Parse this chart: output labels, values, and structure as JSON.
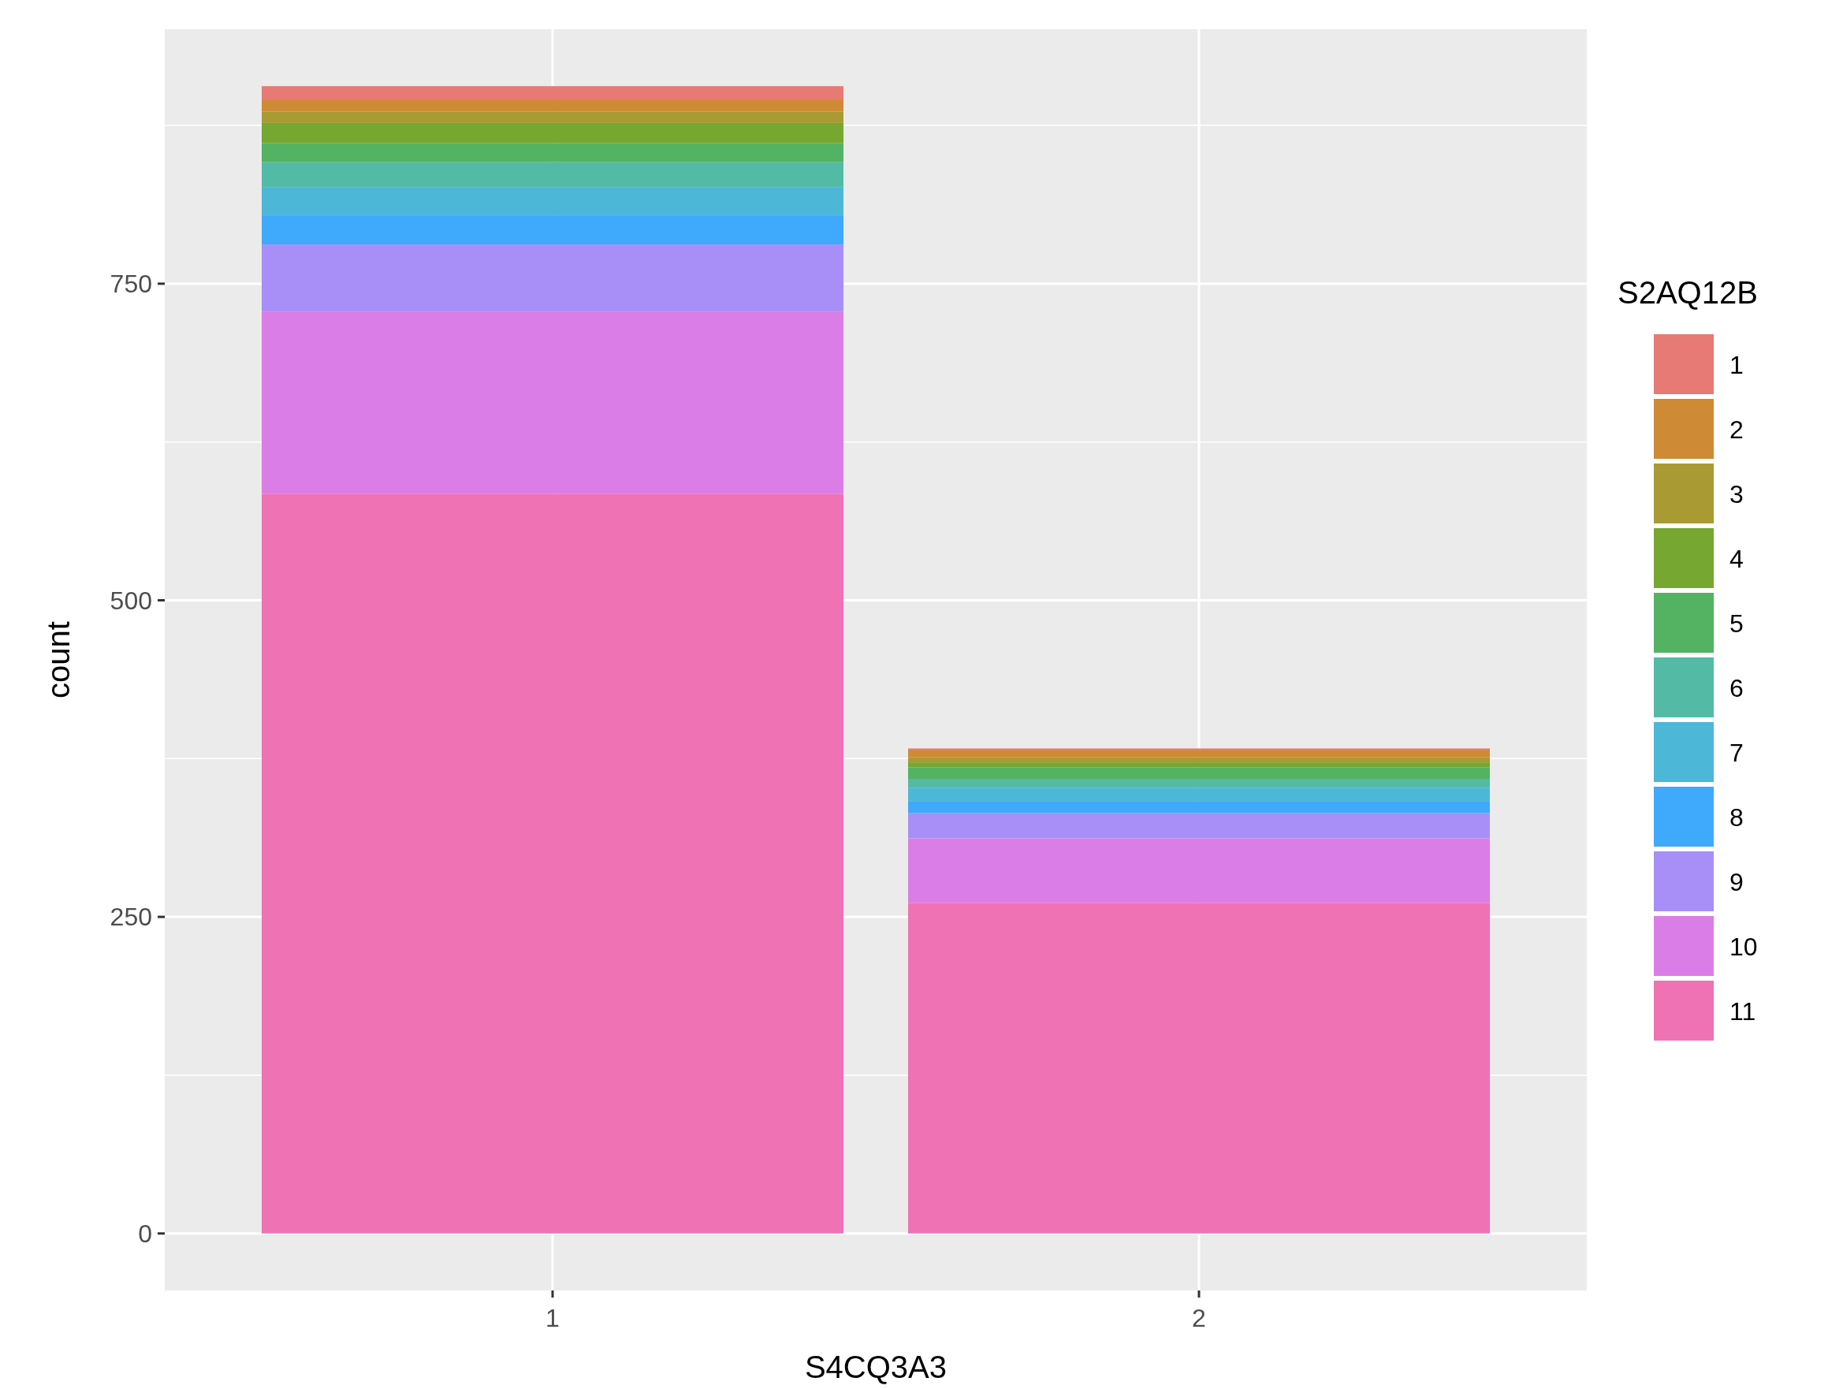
{
  "chart_data": {
    "type": "bar",
    "stacked": true,
    "xlabel": "S4CQ3A3",
    "ylabel": "count",
    "legend_title": "S2AQ12B",
    "categories": [
      "1",
      "2"
    ],
    "series": [
      {
        "name": "11",
        "color": "#ef72b4",
        "values": [
          584,
          261
        ]
      },
      {
        "name": "10",
        "color": "#db7de6",
        "values": [
          144,
          51
        ]
      },
      {
        "name": "9",
        "color": "#a78ff7",
        "values": [
          53,
          20
        ]
      },
      {
        "name": "8",
        "color": "#3fa9fb",
        "values": [
          23,
          9
        ]
      },
      {
        "name": "7",
        "color": "#4db7d8",
        "values": [
          22,
          11
        ]
      },
      {
        "name": "6",
        "color": "#53baa6",
        "values": [
          20,
          7
        ]
      },
      {
        "name": "5",
        "color": "#53b362",
        "values": [
          15,
          9
        ]
      },
      {
        "name": "4",
        "color": "#76a731",
        "values": [
          16,
          4
        ]
      },
      {
        "name": "3",
        "color": "#aa9a33",
        "values": [
          9,
          4
        ]
      },
      {
        "name": "2",
        "color": "#cf8a35",
        "values": [
          9,
          6
        ]
      },
      {
        "name": "1",
        "color": "#e77a74",
        "values": [
          11,
          1
        ]
      }
    ],
    "ylim": [
      -45,
      951
    ],
    "yticks": [
      0,
      250,
      500,
      750
    ],
    "grid": true,
    "legend": "right"
  }
}
